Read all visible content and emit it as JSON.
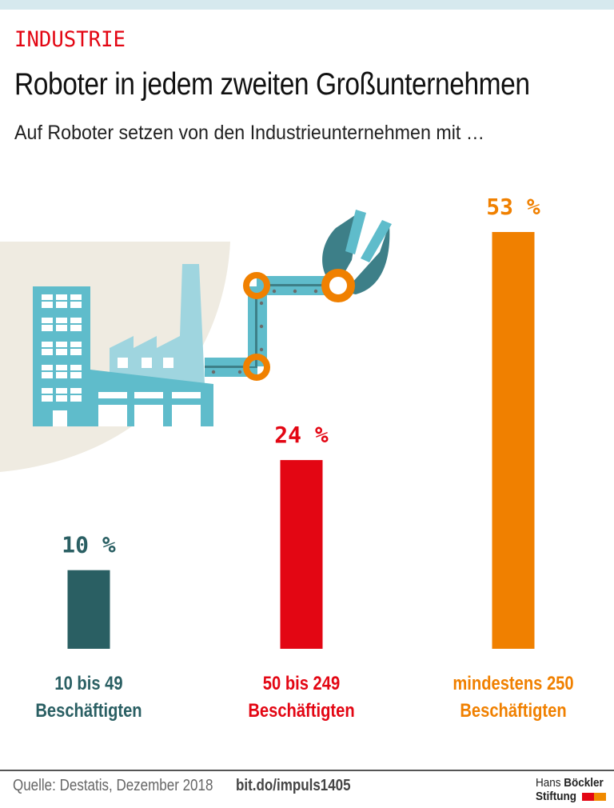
{
  "header": {
    "kicker": "INDUSTRIE",
    "title": "Roboter in jedem zweiten Großunternehmen",
    "subtitle": "Auf Roboter setzen von den Industrieunternehmen mit …"
  },
  "chart_data": {
    "type": "bar",
    "title": "Roboter in jedem zweiten Großunternehmen",
    "subtitle": "Auf Roboter setzen von den Industrieunternehmen mit …",
    "categories": [
      "10 bis 49 Beschäftigten",
      "50 bis 249 Beschäftigten",
      "mindestens 250 Beschäftigten"
    ],
    "category_lines": [
      [
        "10 bis 49",
        "Beschäftigten"
      ],
      [
        "50 bis 249",
        "Beschäftigten"
      ],
      [
        "mindestens 250",
        "Beschäftigten"
      ]
    ],
    "values": [
      10,
      24,
      53
    ],
    "value_labels": [
      "10 %",
      "24 %",
      "53 %"
    ],
    "colors": [
      "#2a5f63",
      "#e30613",
      "#f08000"
    ],
    "unit": "%",
    "xlabel": "",
    "ylabel": "",
    "ylim": [
      0,
      53
    ],
    "grid": false,
    "legend": "none"
  },
  "illustration": {
    "description": "factory-with-robot-arm",
    "colors": {
      "building": "#5fbccb",
      "building_light": "#9fd5df",
      "arm_dark": "#3d7f88",
      "joint": "#f08000",
      "backdrop": "#efebe1"
    }
  },
  "footer": {
    "source": "Quelle: Destatis, Dezember 2018",
    "link": "bit.do/impuls1405",
    "logo_line1_a": "Hans",
    "logo_line1_b": "Böckler",
    "logo_line2": "Stiftung"
  }
}
